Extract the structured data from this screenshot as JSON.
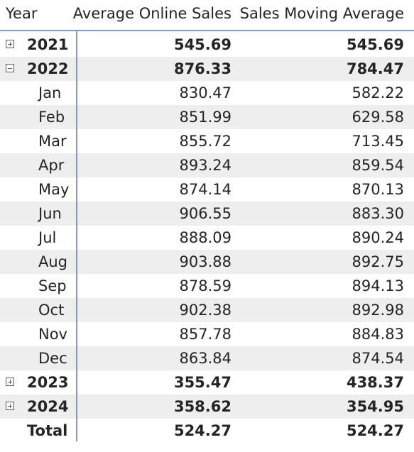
{
  "header": {
    "year_label": "Year",
    "col1_label": "Average Online Sales",
    "col2_label": "Sales Moving Average"
  },
  "rows": {
    "y2021": {
      "year": "2021",
      "v1": "545.69",
      "v2": "545.69",
      "toggle": "plus-icon"
    },
    "y2022": {
      "year": "2022",
      "v1": "876.33",
      "v2": "784.47",
      "toggle": "minus-icon"
    },
    "months": [
      {
        "month": "Jan",
        "v1": "830.47",
        "v2": "582.22"
      },
      {
        "month": "Feb",
        "v1": "851.99",
        "v2": "629.58"
      },
      {
        "month": "Mar",
        "v1": "855.72",
        "v2": "713.45"
      },
      {
        "month": "Apr",
        "v1": "893.24",
        "v2": "859.54"
      },
      {
        "month": "May",
        "v1": "874.14",
        "v2": "870.13"
      },
      {
        "month": "Jun",
        "v1": "906.55",
        "v2": "883.30"
      },
      {
        "month": "Jul",
        "v1": "888.09",
        "v2": "890.24"
      },
      {
        "month": "Aug",
        "v1": "903.88",
        "v2": "892.75"
      },
      {
        "month": "Sep",
        "v1": "878.59",
        "v2": "894.13"
      },
      {
        "month": "Oct",
        "v1": "902.38",
        "v2": "892.98"
      },
      {
        "month": "Nov",
        "v1": "857.78",
        "v2": "884.83"
      },
      {
        "month": "Dec",
        "v1": "863.84",
        "v2": "874.54"
      }
    ],
    "y2023": {
      "year": "2023",
      "v1": "355.47",
      "v2": "438.37",
      "toggle": "plus-icon"
    },
    "y2024": {
      "year": "2024",
      "v1": "358.62",
      "v2": "354.95",
      "toggle": "plus-icon"
    },
    "total": {
      "label": "Total",
      "v1": "524.27",
      "v2": "524.27"
    }
  },
  "colors": {
    "divider": "#7e9cc2",
    "shade": "#eeeeee",
    "text": "#252423"
  }
}
